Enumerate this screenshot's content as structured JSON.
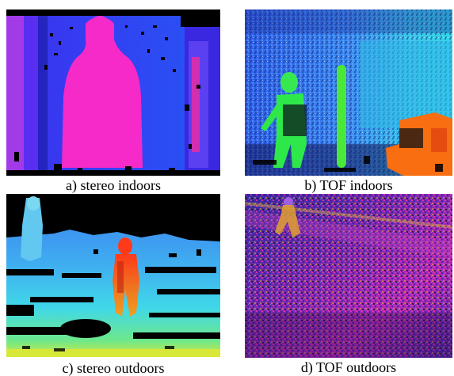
{
  "figures": [
    {
      "id": "a",
      "caption": "a) stereo indoors"
    },
    {
      "id": "b",
      "caption": "b) TOF indoors"
    },
    {
      "id": "c",
      "caption": "c) stereo outdoors"
    },
    {
      "id": "d",
      "caption": "d) TOF outdoors"
    }
  ]
}
